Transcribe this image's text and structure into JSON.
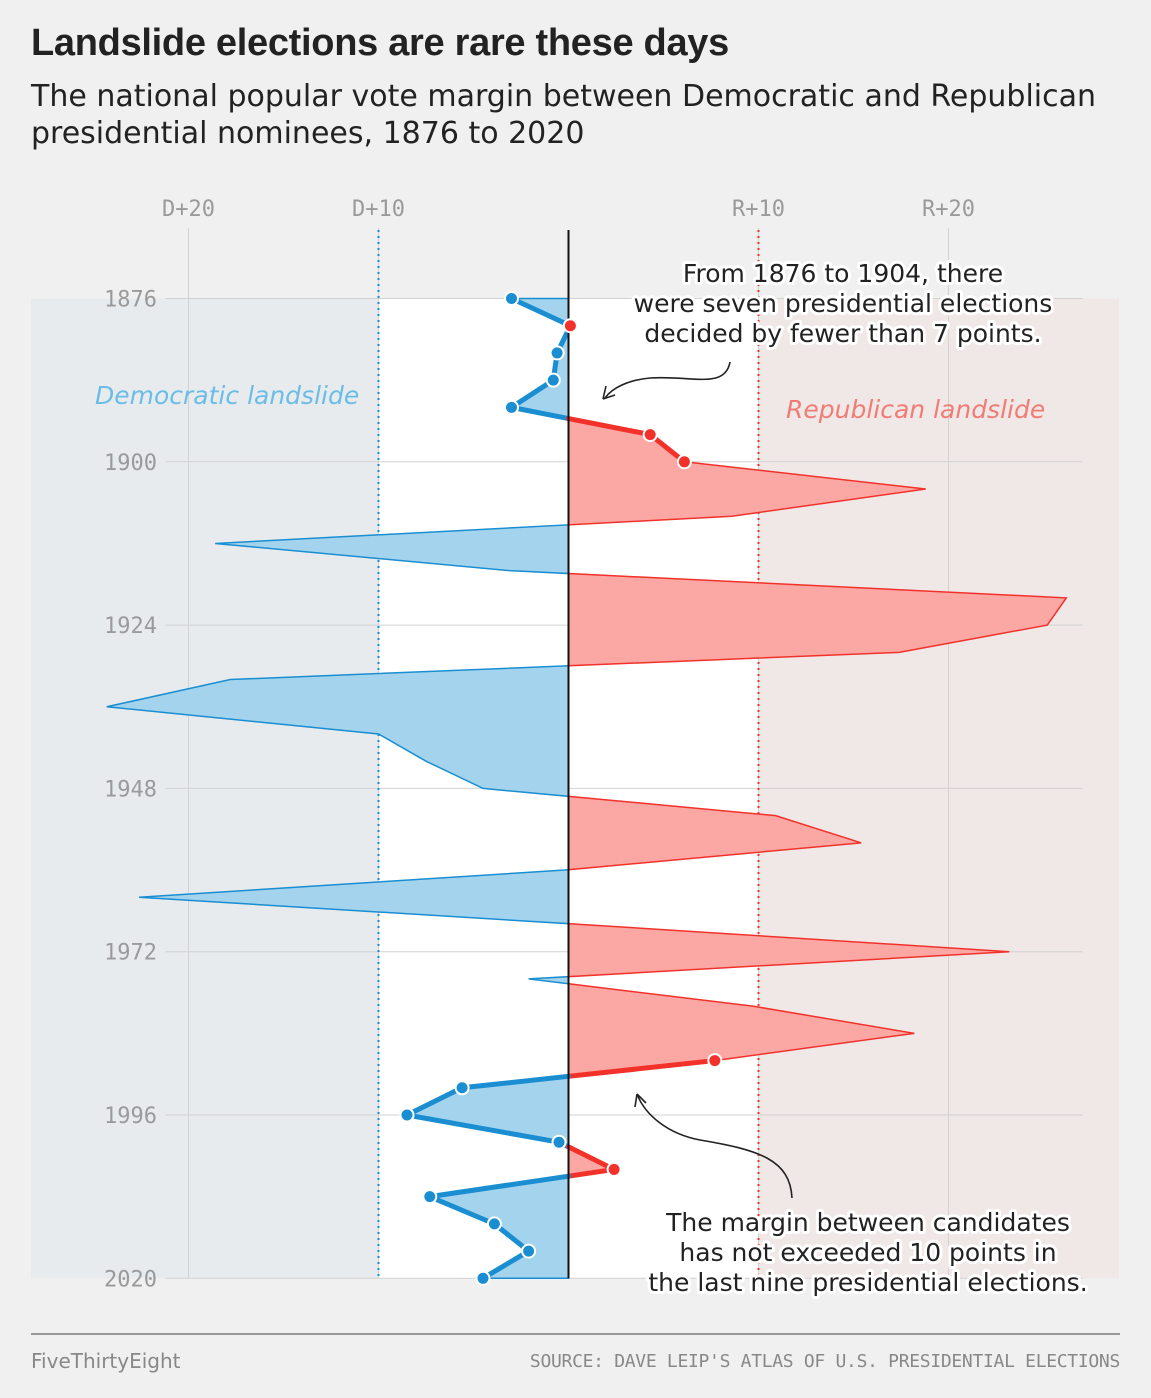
{
  "title": "Landslide elections are rare these days",
  "subtitle": "The national popular vote margin between Democratic and Republican presidential nominees, 1876 to 2020",
  "footer": {
    "brand": "FiveThirtyEight",
    "source": "SOURCE: DAVE LEIP'S ATLAS OF U.S. PRESIDENTIAL ELECTIONS"
  },
  "chart_data": {
    "type": "area",
    "x_label": "",
    "y_label": "",
    "xlim": [
      -24.4,
      27.0
    ],
    "ylim": [
      1876,
      2020
    ],
    "x_ticks": [
      {
        "value": -20,
        "label": "D+20"
      },
      {
        "value": -10,
        "label": "D+10"
      },
      {
        "value": 10,
        "label": "R+10"
      },
      {
        "value": 20,
        "label": "R+20"
      }
    ],
    "y_ticks": [
      1876,
      1900,
      1924,
      1948,
      1972,
      1996,
      2020
    ],
    "landslide_threshold": 10,
    "region_labels": {
      "democratic": "Democratic landslide",
      "republican": "Republican landslide"
    },
    "colors": {
      "democratic": "#1a8ed1",
      "democratic_fill": "#a3d3ed",
      "republican": "#f2322a",
      "republican_fill": "#fba8a4",
      "dem_region": "#e7ebee",
      "rep_region": "#f0e7e7",
      "zero_line": "#111111"
    },
    "series": [
      {
        "values": [
          {
            "year": 1876,
            "margin": -3.0
          },
          {
            "year": 1880,
            "margin": 0.1
          },
          {
            "year": 1884,
            "margin": -0.6
          },
          {
            "year": 1888,
            "margin": -0.8
          },
          {
            "year": 1892,
            "margin": -3.0
          },
          {
            "year": 1896,
            "margin": 4.3
          },
          {
            "year": 1900,
            "margin": 6.1
          },
          {
            "year": 1904,
            "margin": 18.8
          },
          {
            "year": 1908,
            "margin": 8.6
          },
          {
            "year": 1912,
            "margin": -18.6
          },
          {
            "year": 1916,
            "margin": -3.1
          },
          {
            "year": 1920,
            "margin": 26.2
          },
          {
            "year": 1924,
            "margin": 25.2
          },
          {
            "year": 1928,
            "margin": 17.4
          },
          {
            "year": 1932,
            "margin": -17.8
          },
          {
            "year": 1936,
            "margin": -24.3
          },
          {
            "year": 1940,
            "margin": -10.0
          },
          {
            "year": 1944,
            "margin": -7.5
          },
          {
            "year": 1948,
            "margin": -4.5
          },
          {
            "year": 1952,
            "margin": 10.9
          },
          {
            "year": 1956,
            "margin": 15.4
          },
          {
            "year": 1960,
            "margin": -0.2
          },
          {
            "year": 1964,
            "margin": -22.6
          },
          {
            "year": 1968,
            "margin": 0.7
          },
          {
            "year": 1972,
            "margin": 23.2
          },
          {
            "year": 1976,
            "margin": -2.1
          },
          {
            "year": 1980,
            "margin": 9.7
          },
          {
            "year": 1984,
            "margin": 18.2
          },
          {
            "year": 1988,
            "margin": 7.7
          },
          {
            "year": 1992,
            "margin": -5.6
          },
          {
            "year": 1996,
            "margin": -8.5
          },
          {
            "year": 2000,
            "margin": -0.5
          },
          {
            "year": 2004,
            "margin": 2.4
          },
          {
            "year": 2008,
            "margin": -7.3
          },
          {
            "year": 2012,
            "margin": -3.9
          },
          {
            "year": 2016,
            "margin": -2.1
          },
          {
            "year": 2020,
            "margin": -4.5
          }
        ]
      }
    ],
    "annotations": [
      {
        "id": "early",
        "text": "From 1876 to 1904, there were seven presidential elections decided by fewer than 7 points.",
        "lines": [
          "From 1876 to 1904, there",
          "were seven presidential elections",
          "decided by fewer than 7 points."
        ]
      },
      {
        "id": "recent",
        "text": "The margin between candidates has not exceeded 10 points in the last nine presidential elections.",
        "lines": [
          "The margin between candidates",
          "has not exceeded 10 points in",
          "the last nine presidential elections."
        ]
      }
    ]
  }
}
